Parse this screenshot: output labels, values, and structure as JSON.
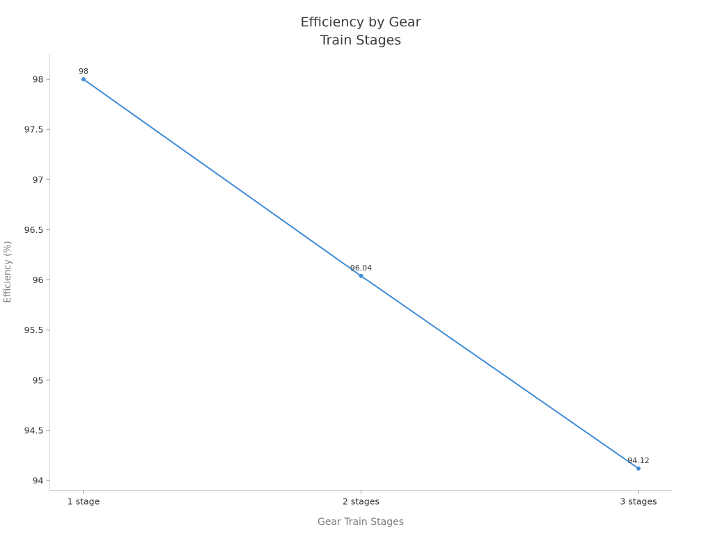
{
  "chart_data": {
    "type": "line",
    "title_lines": [
      "Efficiency by Gear",
      "Train Stages"
    ],
    "xlabel": "Gear Train Stages",
    "ylabel": "Efficiency (%)",
    "categories": [
      "1 stage",
      "2 stages",
      "3 stages"
    ],
    "series": [
      {
        "name": "Efficiency",
        "values": [
          98,
          96.04,
          94.12
        ]
      }
    ],
    "point_labels": [
      "98",
      "96.04",
      "94.12"
    ],
    "yticks": [
      94,
      94.5,
      95,
      95.5,
      96,
      96.5,
      97,
      97.5,
      98
    ],
    "ytick_labels": [
      "94",
      "94.5",
      "95",
      "95.5",
      "96",
      "96.5",
      "97",
      "97.5",
      "98"
    ],
    "ylim": [
      93.9,
      98.25
    ],
    "grid": false,
    "legend": "none",
    "marker": "circle",
    "colors": {
      "line": "#3f8cd6",
      "marker": "#3f8cd6",
      "axis_line": "#d4d4d4",
      "tick_mark": "#8c8c8c",
      "tick_label": "#333333",
      "title": "#3b3b3b",
      "axis_title": "#7c7c7c",
      "point_label": "#3a3a3a",
      "background": "#ffffff"
    }
  }
}
